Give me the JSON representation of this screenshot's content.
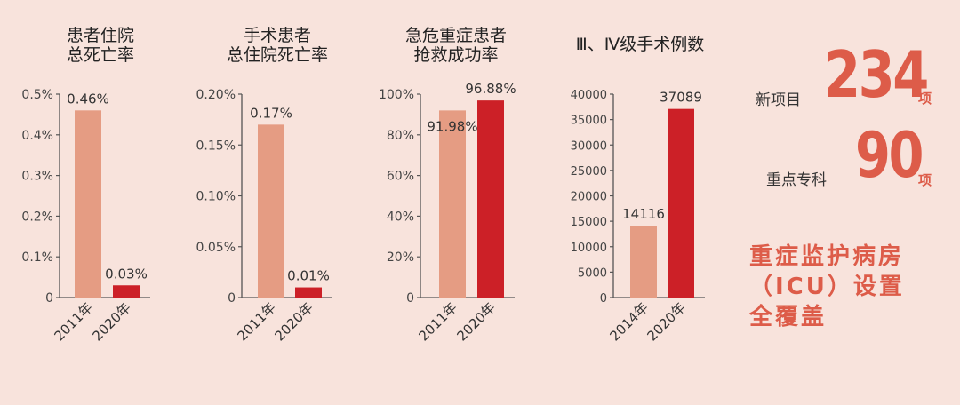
{
  "colors": {
    "background": "#f8e3dc",
    "bar_old": "#e59c83",
    "bar_new": "#cc2027",
    "accent": "#dd5c49",
    "axis": "#555555"
  },
  "chart_data": [
    {
      "type": "bar",
      "title_lines": [
        "患者住院",
        "总死亡率"
      ],
      "categories": [
        "2011年",
        "2020年"
      ],
      "values": [
        0.46,
        0.03
      ],
      "value_labels": [
        "0.46%",
        "0.03%"
      ],
      "ylim": [
        0,
        0.5
      ],
      "yticks": [
        0,
        0.1,
        0.2,
        0.3,
        0.4,
        0.5
      ],
      "ytick_labels": [
        "0",
        "0.1%",
        "0.2%",
        "0.3%",
        "0.4%",
        "0.5%"
      ],
      "bar_colors": [
        "#e59c83",
        "#cc2027"
      ]
    },
    {
      "type": "bar",
      "title_lines": [
        "手术患者",
        "总住院死亡率"
      ],
      "categories": [
        "2011年",
        "2020年"
      ],
      "values": [
        0.17,
        0.01
      ],
      "value_labels": [
        "0.17%",
        "0.01%"
      ],
      "ylim": [
        0,
        0.2
      ],
      "yticks": [
        0,
        0.05,
        0.1,
        0.15,
        0.2
      ],
      "ytick_labels": [
        "0",
        "0.05%",
        "0.10%",
        "0.15%",
        "0.20%"
      ],
      "bar_colors": [
        "#e59c83",
        "#cc2027"
      ]
    },
    {
      "type": "bar",
      "title_lines": [
        "急危重症患者",
        "抢救成功率"
      ],
      "categories": [
        "2011年",
        "2020年"
      ],
      "values": [
        91.98,
        96.88
      ],
      "value_labels": [
        "91.98%",
        "96.88%"
      ],
      "ylim": [
        0,
        100
      ],
      "yticks": [
        0,
        20,
        40,
        60,
        80,
        100
      ],
      "ytick_labels": [
        "0",
        "20%",
        "40%",
        "60%",
        "80%",
        "100%"
      ],
      "bar_colors": [
        "#e59c83",
        "#cc2027"
      ]
    },
    {
      "type": "bar",
      "title_lines": [
        "Ⅲ、Ⅳ级手术例数"
      ],
      "categories": [
        "2014年",
        "2020年"
      ],
      "values": [
        14116,
        37089
      ],
      "value_labels": [
        "14116",
        "37089"
      ],
      "ylim": [
        0,
        40000
      ],
      "yticks": [
        0,
        5000,
        10000,
        15000,
        20000,
        25000,
        30000,
        35000,
        40000
      ],
      "ytick_labels": [
        "0",
        "5000",
        "10000",
        "15000",
        "20000",
        "25000",
        "30000",
        "35000",
        "40000"
      ],
      "bar_colors": [
        "#e59c83",
        "#cc2027"
      ]
    }
  ],
  "stats": {
    "new_projects": {
      "label": "新项目",
      "value": "234",
      "unit": "项"
    },
    "key_specialties": {
      "label": "重点专科",
      "value": "90",
      "unit": "项"
    }
  },
  "icu_text": [
    "重症监护病房",
    "（ICU）设置",
    "全覆盖"
  ]
}
